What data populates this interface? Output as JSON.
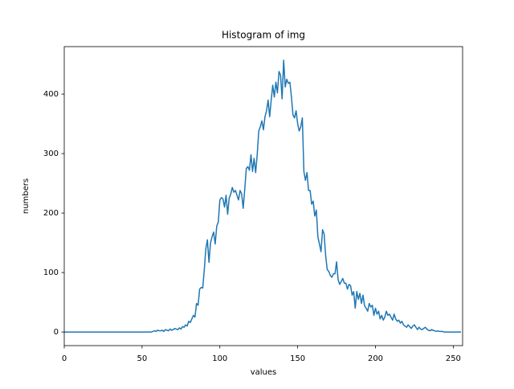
{
  "chart_data": {
    "type": "line",
    "title": "Histogram of img",
    "x_label": "values",
    "y_label": "numbers",
    "x": [
      0,
      1,
      2,
      3,
      4,
      5,
      6,
      7,
      8,
      9,
      10,
      11,
      12,
      13,
      14,
      15,
      16,
      17,
      18,
      19,
      20,
      21,
      22,
      23,
      24,
      25,
      26,
      27,
      28,
      29,
      30,
      31,
      32,
      33,
      34,
      35,
      36,
      37,
      38,
      39,
      40,
      41,
      42,
      43,
      44,
      45,
      46,
      47,
      48,
      49,
      50,
      51,
      52,
      53,
      54,
      55,
      56,
      57,
      58,
      59,
      60,
      61,
      62,
      63,
      64,
      65,
      66,
      67,
      68,
      69,
      70,
      71,
      72,
      73,
      74,
      75,
      76,
      77,
      78,
      79,
      80,
      81,
      82,
      83,
      84,
      85,
      86,
      87,
      88,
      89,
      90,
      91,
      92,
      93,
      94,
      95,
      96,
      97,
      98,
      99,
      100,
      101,
      102,
      103,
      104,
      105,
      106,
      107,
      108,
      109,
      110,
      111,
      112,
      113,
      114,
      115,
      116,
      117,
      118,
      119,
      120,
      121,
      122,
      123,
      124,
      125,
      126,
      127,
      128,
      129,
      130,
      131,
      132,
      133,
      134,
      135,
      136,
      137,
      138,
      139,
      140,
      141,
      142,
      143,
      144,
      145,
      146,
      147,
      148,
      149,
      150,
      151,
      152,
      153,
      154,
      155,
      156,
      157,
      158,
      159,
      160,
      161,
      162,
      163,
      164,
      165,
      166,
      167,
      168,
      169,
      170,
      171,
      172,
      173,
      174,
      175,
      176,
      177,
      178,
      179,
      180,
      181,
      182,
      183,
      184,
      185,
      186,
      187,
      188,
      189,
      190,
      191,
      192,
      193,
      194,
      195,
      196,
      197,
      198,
      199,
      200,
      201,
      202,
      203,
      204,
      205,
      206,
      207,
      208,
      209,
      210,
      211,
      212,
      213,
      214,
      215,
      216,
      217,
      218,
      219,
      220,
      221,
      222,
      223,
      224,
      225,
      226,
      227,
      228,
      229,
      230,
      231,
      232,
      233,
      234,
      235,
      236,
      237,
      238,
      239,
      240,
      241,
      242,
      243,
      244,
      245,
      246,
      247,
      248,
      249,
      250,
      251,
      252,
      253,
      254,
      255
    ],
    "series": [
      {
        "name": "img",
        "color": "#1f77b4",
        "values": [
          0,
          0,
          0,
          0,
          0,
          0,
          0,
          0,
          0,
          0,
          0,
          0,
          0,
          0,
          0,
          0,
          0,
          0,
          0,
          0,
          0,
          0,
          0,
          0,
          0,
          0,
          0,
          0,
          0,
          0,
          0,
          0,
          0,
          0,
          0,
          0,
          0,
          0,
          0,
          0,
          0,
          0,
          0,
          0,
          0,
          0,
          0,
          0,
          0,
          0,
          0,
          0,
          0,
          0,
          0,
          0,
          0,
          1,
          2,
          1,
          3,
          2,
          2,
          3,
          1,
          4,
          3,
          2,
          5,
          3,
          4,
          6,
          5,
          4,
          7,
          5,
          9,
          8,
          12,
          10,
          18,
          16,
          22,
          28,
          25,
          48,
          45,
          72,
          75,
          74,
          105,
          140,
          155,
          117,
          150,
          160,
          168,
          148,
          178,
          185,
          222,
          226,
          224,
          210,
          230,
          198,
          225,
          232,
          243,
          235,
          238,
          230,
          222,
          238,
          232,
          208,
          240,
          275,
          278,
          272,
          298,
          270,
          292,
          268,
          298,
          338,
          345,
          355,
          340,
          362,
          372,
          390,
          362,
          390,
          415,
          395,
          420,
          402,
          438,
          432,
          392,
          457,
          412,
          425,
          418,
          420,
          395,
          365,
          360,
          372,
          350,
          338,
          345,
          360,
          270,
          255,
          268,
          238,
          238,
          215,
          220,
          195,
          205,
          160,
          148,
          135,
          172,
          165,
          128,
          105,
          102,
          95,
          92,
          98,
          98,
          118,
          88,
          80,
          85,
          90,
          82,
          82,
          72,
          80,
          78,
          62,
          68,
          40,
          68,
          55,
          65,
          48,
          62,
          44,
          40,
          35,
          48,
          42,
          45,
          28,
          40,
          30,
          35,
          22,
          28,
          20,
          25,
          35,
          28,
          30,
          25,
          20,
          30,
          22,
          18,
          20,
          15,
          18,
          12,
          10,
          8,
          12,
          9,
          6,
          10,
          12,
          8,
          4,
          8,
          5,
          4,
          6,
          8,
          5,
          3,
          2,
          4,
          3,
          2,
          1,
          2,
          1,
          1,
          1,
          0,
          0,
          0,
          0,
          0,
          0,
          0,
          0,
          0,
          0,
          0,
          0
        ]
      }
    ],
    "xlim": [
      0,
      256
    ],
    "xticks": [
      0,
      50,
      100,
      150,
      200,
      250
    ],
    "ylim": [
      -22.85,
      479.85
    ],
    "yticks": [
      0,
      100,
      200,
      300,
      400
    ],
    "grid": false
  }
}
